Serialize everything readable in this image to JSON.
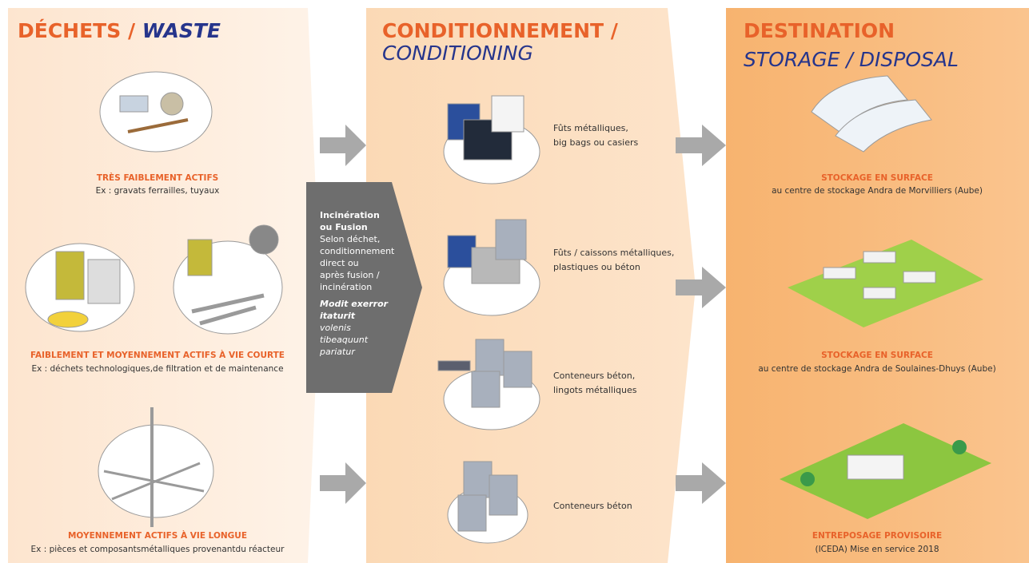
{
  "columns": [
    {
      "title_fr": "DÉCHETS /",
      "title_en": "WASTE",
      "items": [
        {
          "label": "TRÈS FAIBLEMENT ACTIFS",
          "desc": "Ex : gravats ferrailles, tuyaux"
        },
        {
          "label": "FAIBLEMENT ET MOYENNEMENT ACTIFS À VIE COURTE",
          "desc": "Ex : déchets technologiques,de filtration et de maintenance"
        },
        {
          "label": "MOYENNEMENT ACTIFS À VIE LONGUE",
          "desc": "Ex : pièces et composantsmétalliques provenantdu réacteur"
        }
      ]
    },
    {
      "title_fr": "CONDITIONNEMENT /",
      "title_en": "CONDITIONING",
      "items": [
        {
          "lines": [
            "Fûts métalliques,",
            "big bags ou casiers"
          ]
        },
        {
          "lines": [
            "Fûts / caissons métalliques,",
            "plastiques ou béton"
          ]
        },
        {
          "lines": [
            "Conteneurs béton,",
            "lingots métalliques"
          ]
        },
        {
          "lines": [
            "Conteneurs béton"
          ]
        }
      ]
    },
    {
      "title_fr": "DESTINATION",
      "title_en": "STORAGE / DISPOSAL",
      "items": [
        {
          "label": "STOCKAGE EN SURFACE",
          "desc": "au centre de stockage Andra de Morvilliers (Aube)"
        },
        {
          "label": "STOCKAGE EN SURFACE",
          "desc": "au centre de stockage Andra de Soulaines-Dhuys (Aube)"
        },
        {
          "label": "ENTREPOSAGE PROVISOIRE",
          "desc": "(ICEDA) Mise en service 2018"
        }
      ]
    }
  ],
  "process": {
    "title": [
      "Incinération",
      "ou Fusion"
    ],
    "text": [
      "Selon déchet,",
      "conditionnement",
      "direct ou",
      "après fusion /",
      "incinération"
    ],
    "note_bold": [
      "Modit exerror",
      "itaturit"
    ],
    "note": [
      "volenis",
      "tibeaquunt",
      "pariatur"
    ]
  }
}
